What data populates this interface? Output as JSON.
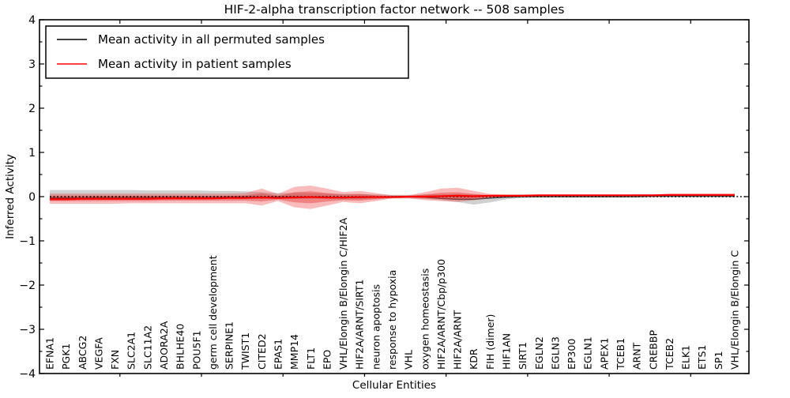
{
  "chart_data": {
    "type": "line",
    "title": "HIF-2-alpha transcription factor network -- 508 samples",
    "xlabel": "Cellular Entities",
    "ylabel": "Inferred Activity",
    "ylim": [
      -4,
      4
    ],
    "yticks": [
      4,
      3,
      2,
      1,
      0,
      -1,
      -2,
      -3,
      -4
    ],
    "grid": false,
    "legend_position": "upper left",
    "background_color": "#ffffff",
    "zero_line": {
      "color": "#000000",
      "style": "dotted",
      "y": 0
    },
    "categories": [
      "EFNA1",
      "PGK1",
      "ABCG2",
      "VEGFA",
      "FXN",
      "SLC2A1",
      "SLC11A2",
      "ADORA2A",
      "BHLHE40",
      "POU5F1",
      "germ cell development",
      "SERPINE1",
      "TWIST1",
      "CITED2",
      "EPAS1",
      "MMP14",
      "FLT1",
      "EPO",
      "VHL/Elongin B/Elongin C/HIF2A",
      "HIF2A/ARNT/SIRT1",
      "neuron apoptosis",
      "response to hypoxia",
      "VHL",
      "oxygen homeostasis",
      "HIF2A/ARNT/Cbp/p300",
      "HIF2A/ARNT",
      "KDR",
      "FIH (dimer)",
      "HIF1AN",
      "SIRT1",
      "EGLN2",
      "EGLN3",
      "EP300",
      "EGLN1",
      "APEX1",
      "TCEB1",
      "ARNT",
      "CREBBP",
      "TCEB2",
      "ELK1",
      "ETS1",
      "SP1",
      "VHL/Elongin B/Elongin C"
    ],
    "series": [
      {
        "name": "Mean activity in all permuted samples",
        "color": "#000000",
        "values": [
          -0.03,
          -0.03,
          -0.03,
          -0.02,
          -0.02,
          -0.02,
          -0.02,
          -0.02,
          -0.02,
          -0.02,
          -0.02,
          -0.01,
          -0.01,
          -0.01,
          -0.01,
          -0.01,
          -0.01,
          -0.01,
          -0.02,
          -0.02,
          -0.01,
          0.0,
          0.0,
          -0.01,
          -0.04,
          -0.06,
          -0.06,
          -0.03,
          -0.01,
          0.0,
          0.0,
          0.0,
          0.0,
          0.0,
          0.0,
          0.0,
          0.0,
          0.01,
          0.01,
          0.01,
          0.01,
          0.01,
          0.01
        ]
      },
      {
        "name": "Mean activity in patient samples",
        "color": "#ff0000",
        "values": [
          -0.06,
          -0.06,
          -0.05,
          -0.05,
          -0.05,
          -0.05,
          -0.05,
          -0.04,
          -0.04,
          -0.04,
          -0.04,
          -0.03,
          -0.03,
          -0.02,
          -0.03,
          -0.02,
          -0.01,
          -0.02,
          -0.02,
          -0.01,
          -0.01,
          -0.01,
          0.0,
          0.0,
          0.01,
          0.02,
          0.01,
          0.02,
          0.02,
          0.02,
          0.03,
          0.03,
          0.03,
          0.03,
          0.03,
          0.03,
          0.03,
          0.03,
          0.04,
          0.04,
          0.04,
          0.04,
          0.04
        ]
      }
    ],
    "bands": [
      {
        "name": "permuted-samples-spread",
        "color": "rgba(150,150,150,0.45)",
        "upper": [
          0.15,
          0.15,
          0.15,
          0.15,
          0.15,
          0.15,
          0.14,
          0.14,
          0.14,
          0.14,
          0.13,
          0.13,
          0.12,
          0.1,
          0.08,
          0.08,
          0.08,
          0.07,
          0.06,
          0.06,
          0.05,
          0.04,
          0.04,
          0.05,
          0.05,
          0.06,
          0.05,
          0.04,
          0.03,
          0.03,
          0.02,
          0.02,
          0.02,
          0.02,
          0.02,
          0.02,
          0.02,
          0.02,
          0.02,
          0.02,
          0.02,
          0.02,
          0.02
        ],
        "lower": [
          -0.03,
          -0.03,
          -0.03,
          -0.03,
          -0.03,
          -0.03,
          -0.03,
          -0.03,
          -0.03,
          -0.03,
          -0.04,
          -0.04,
          -0.04,
          -0.05,
          -0.04,
          -0.05,
          -0.05,
          -0.05,
          -0.06,
          -0.06,
          -0.05,
          -0.04,
          -0.04,
          -0.05,
          -0.08,
          -0.12,
          -0.18,
          -0.13,
          -0.06,
          -0.03,
          -0.02,
          -0.01,
          -0.01,
          -0.01,
          -0.01,
          -0.01,
          -0.01,
          -0.01,
          -0.01,
          -0.01,
          -0.01,
          -0.01,
          -0.01
        ]
      },
      {
        "name": "patient-samples-spread-outer",
        "color": "rgba(235,45,45,0.32)",
        "upper": [
          0.07,
          0.07,
          0.07,
          0.07,
          0.07,
          0.07,
          0.07,
          0.07,
          0.07,
          0.07,
          0.07,
          0.07,
          0.08,
          0.18,
          0.06,
          0.22,
          0.25,
          0.18,
          0.1,
          0.13,
          0.08,
          0.03,
          0.03,
          0.1,
          0.18,
          0.2,
          0.13,
          0.06,
          0.05,
          0.05,
          0.05,
          0.05,
          0.05,
          0.05,
          0.05,
          0.05,
          0.05,
          0.05,
          0.05,
          0.05,
          0.05,
          0.05,
          0.06
        ],
        "lower": [
          -0.16,
          -0.16,
          -0.16,
          -0.16,
          -0.16,
          -0.15,
          -0.15,
          -0.15,
          -0.15,
          -0.15,
          -0.15,
          -0.15,
          -0.15,
          -0.2,
          -0.1,
          -0.24,
          -0.28,
          -0.2,
          -0.12,
          -0.15,
          -0.1,
          -0.04,
          -0.04,
          -0.08,
          -0.1,
          -0.12,
          -0.08,
          -0.03,
          0.0,
          0.01,
          0.02,
          0.02,
          0.02,
          0.02,
          0.02,
          0.02,
          0.02,
          0.02,
          0.02,
          0.02,
          0.02,
          0.02,
          0.02
        ]
      },
      {
        "name": "patient-samples-spread-inner",
        "color": "rgba(220,30,30,0.35)",
        "upper": [
          0.02,
          0.02,
          0.02,
          0.02,
          0.02,
          0.02,
          0.02,
          0.02,
          0.02,
          0.02,
          0.02,
          0.02,
          0.03,
          0.08,
          0.02,
          0.1,
          0.12,
          0.08,
          0.05,
          0.06,
          0.03,
          0.01,
          0.01,
          0.05,
          0.09,
          0.1,
          0.06,
          0.03,
          0.04,
          0.04,
          0.04,
          0.04,
          0.04,
          0.04,
          0.04,
          0.04,
          0.05,
          0.05,
          0.05,
          0.05,
          0.05,
          0.05,
          0.05
        ],
        "lower": [
          -0.1,
          -0.1,
          -0.1,
          -0.1,
          -0.1,
          -0.1,
          -0.1,
          -0.09,
          -0.09,
          -0.09,
          -0.09,
          -0.09,
          -0.09,
          -0.11,
          -0.07,
          -0.13,
          -0.15,
          -0.11,
          -0.08,
          -0.09,
          -0.06,
          -0.03,
          -0.02,
          -0.04,
          -0.05,
          -0.06,
          -0.04,
          -0.01,
          0.0,
          0.01,
          0.01,
          0.02,
          0.02,
          0.02,
          0.02,
          0.02,
          0.02,
          0.02,
          0.02,
          0.03,
          0.03,
          0.03,
          0.03
        ]
      }
    ]
  }
}
